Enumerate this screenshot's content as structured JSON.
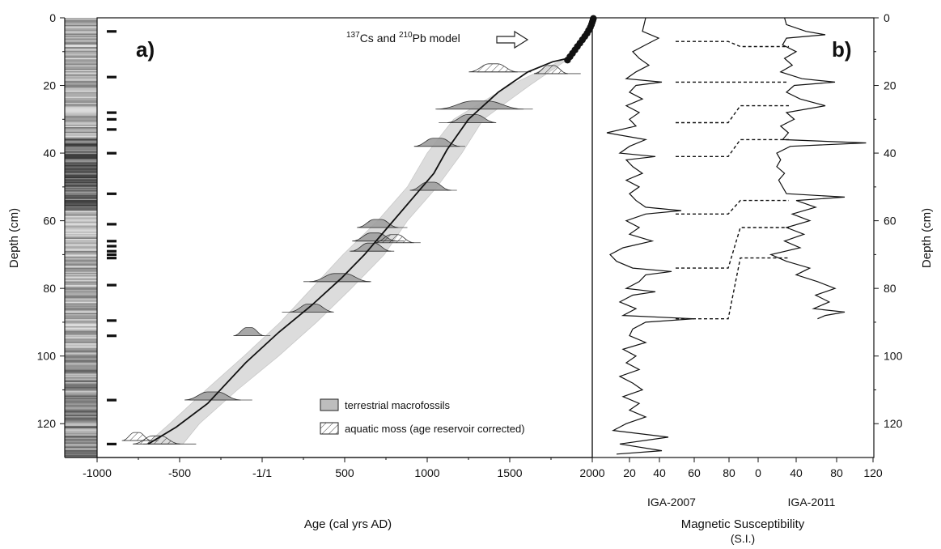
{
  "chart_data": [
    {
      "panel": "a)",
      "type": "line",
      "xlabel": "Age (cal yrs AD)",
      "ylabel": "Depth (cm)",
      "xlim": [
        -1000,
        2000
      ],
      "ylim": [
        0,
        130
      ],
      "y_inverted": true,
      "x_ticks": [
        "-1000",
        "-500",
        "-1/1",
        "500",
        "1000",
        "1500",
        "2000"
      ],
      "y_ticks": [
        "0",
        "20",
        "40",
        "60",
        "80",
        "100",
        "120"
      ],
      "annotation": "Cs and Pb model",
      "annotation_sup1": "137",
      "annotation_sup2": "210",
      "legend": [
        {
          "label": "terrestrial macrofossils",
          "style": "gray-fill"
        },
        {
          "label": "aquatic moss (age reservoir corrected)",
          "style": "hatched"
        }
      ],
      "age_model": {
        "age": [
          -690,
          -520,
          -330,
          -100,
          100,
          300,
          480,
          620,
          760,
          900,
          1040,
          1120,
          1250,
          1430,
          1610,
          1760,
          1850
        ],
        "depth": [
          126,
          121,
          114,
          102,
          93,
          85,
          77,
          70,
          62,
          54,
          46,
          39,
          30,
          22,
          16,
          13,
          12
        ]
      },
      "confidence_band": {
        "depth": [
          12,
          20,
          30,
          40,
          50,
          60,
          70,
          80,
          90,
          100,
          110,
          120,
          126
        ],
        "age_min": [
          1840,
          1500,
          1160,
          1000,
          880,
          700,
          490,
          300,
          110,
          -110,
          -340,
          -560,
          -700
        ],
        "age_max": [
          1860,
          1620,
          1340,
          1210,
          1060,
          880,
          740,
          540,
          330,
          100,
          -150,
          -380,
          -480
        ]
      },
      "cs_pb_points": {
        "age": [
          1850,
          1865,
          1880,
          1895,
          1910,
          1925,
          1940,
          1955,
          1968,
          1978,
          1988,
          1995,
          2000,
          2004,
          2007
        ],
        "depth": [
          12.5,
          11.5,
          10.5,
          9.5,
          8.5,
          7.5,
          6.5,
          5.5,
          4.6,
          3.7,
          2.8,
          2.0,
          1.3,
          0.7,
          0.2
        ]
      },
      "dated_samples": [
        {
          "depth": 16,
          "age": 1400,
          "range": [
            1300,
            1630
          ],
          "type": "aquatic"
        },
        {
          "depth": 16.5,
          "age": 1750,
          "range": [
            1700,
            1930
          ],
          "type": "aquatic"
        },
        {
          "depth": 27,
          "age": 1320,
          "range": [
            1050,
            1640
          ],
          "type": "terrestrial"
        },
        {
          "depth": 31,
          "age": 1270,
          "range": [
            1070,
            1400
          ],
          "type": "terrestrial"
        },
        {
          "depth": 38,
          "age": 1060,
          "range": [
            920,
            1230
          ],
          "type": "terrestrial"
        },
        {
          "depth": 51,
          "age": 1020,
          "range": [
            900,
            1180
          ],
          "type": "terrestrial"
        },
        {
          "depth": 62,
          "age": 700,
          "range": [
            600,
            880
          ],
          "type": "terrestrial"
        },
        {
          "depth": 66,
          "age": 680,
          "range": [
            560,
            860
          ],
          "type": "terrestrial"
        },
        {
          "depth": 66.5,
          "age": 800,
          "range": [
            690,
            960
          ],
          "type": "aquatic"
        },
        {
          "depth": 69,
          "age": 660,
          "range": [
            530,
            800
          ],
          "type": "terrestrial"
        },
        {
          "depth": 78,
          "age": 470,
          "range": [
            250,
            660
          ],
          "type": "terrestrial"
        },
        {
          "depth": 87,
          "age": 300,
          "range": [
            120,
            420
          ],
          "type": "terrestrial"
        },
        {
          "depth": 94,
          "age": -80,
          "range": [
            -160,
            50
          ],
          "type": "terrestrial"
        },
        {
          "depth": 113,
          "age": -300,
          "range": [
            -440,
            -60
          ],
          "type": "terrestrial"
        },
        {
          "depth": 125,
          "age": -760,
          "range": [
            -830,
            -630
          ],
          "type": "aquatic"
        },
        {
          "depth": 126,
          "age": -640,
          "range": [
            -720,
            -400
          ],
          "type": "aquatic"
        }
      ]
    },
    {
      "panel": "b)",
      "type": "line",
      "xlabel": "Magnetic Susceptibility",
      "xlabel2": "(S.I.)",
      "ylabel": "Depth (cm)",
      "ylim": [
        0,
        130
      ],
      "y_inverted": true,
      "x_ticks": [
        "20",
        "40",
        "60",
        "80",
        "0",
        "40",
        "80",
        "120"
      ],
      "y_ticks": [
        "0",
        "20",
        "40",
        "60",
        "80",
        "100",
        "120"
      ],
      "series": [
        {
          "name": "IGA-2007",
          "depth": [
            0,
            4,
            6,
            8,
            10,
            12,
            14,
            16,
            18,
            19,
            20,
            22,
            24,
            26,
            28,
            30,
            32,
            34,
            36,
            38,
            40,
            41,
            42,
            44,
            46,
            48,
            50,
            52,
            54,
            56,
            57,
            58,
            60,
            62,
            64,
            66,
            68,
            70,
            72,
            74,
            75,
            76,
            78,
            80,
            81,
            82,
            84,
            86,
            88,
            89,
            90,
            92,
            94,
            96,
            98,
            100,
            102,
            104,
            106,
            108,
            110,
            112,
            114,
            116,
            118,
            120,
            122,
            124,
            126,
            128,
            129
          ],
          "value": [
            30,
            28,
            38,
            30,
            22,
            26,
            32,
            24,
            18,
            40,
            24,
            20,
            28,
            18,
            26,
            20,
            24,
            6,
            30,
            20,
            14,
            36,
            18,
            22,
            28,
            18,
            26,
            20,
            24,
            30,
            52,
            30,
            18,
            26,
            20,
            34,
            16,
            8,
            12,
            22,
            46,
            30,
            26,
            18,
            36,
            22,
            14,
            24,
            16,
            60,
            30,
            22,
            20,
            30,
            16,
            24,
            18,
            26,
            14,
            22,
            28,
            16,
            26,
            20,
            30,
            18,
            10,
            44,
            14,
            40,
            12
          ]
        },
        {
          "name": "IGA-2011",
          "depth": [
            0,
            2,
            4,
            5,
            6,
            8,
            10,
            12,
            14,
            16,
            18,
            19,
            20,
            22,
            24,
            26,
            28,
            30,
            32,
            34,
            36,
            37,
            38,
            40,
            42,
            44,
            46,
            48,
            50,
            52,
            53,
            54,
            56,
            58,
            60,
            62,
            64,
            66,
            68,
            70,
            72,
            74,
            76,
            78,
            80,
            82,
            84,
            86,
            87,
            88,
            89
          ],
          "value": [
            28,
            30,
            50,
            70,
            30,
            26,
            40,
            28,
            36,
            24,
            46,
            80,
            38,
            30,
            44,
            70,
            30,
            38,
            24,
            32,
            26,
            112,
            34,
            20,
            24,
            20,
            28,
            22,
            26,
            30,
            90,
            40,
            60,
            36,
            54,
            30,
            48,
            28,
            44,
            14,
            30,
            54,
            40,
            62,
            80,
            60,
            74,
            58,
            90,
            70,
            62
          ]
        }
      ],
      "correlation_lines": [
        {
          "a": 7,
          "b": 8.5
        },
        {
          "a": 19,
          "b": 19
        },
        {
          "a": 31,
          "b": 26
        },
        {
          "a": 41,
          "b": 36
        },
        {
          "a": 58,
          "b": 54
        },
        {
          "a": 74,
          "b": 62
        },
        {
          "a": 89,
          "b": 71
        }
      ]
    }
  ],
  "core_image": {
    "sample_marks": [
      4,
      17.5,
      28,
      30,
      33,
      40,
      52,
      61,
      66,
      67.5,
      69,
      70,
      71,
      79,
      89.5,
      94,
      113,
      126
    ]
  }
}
